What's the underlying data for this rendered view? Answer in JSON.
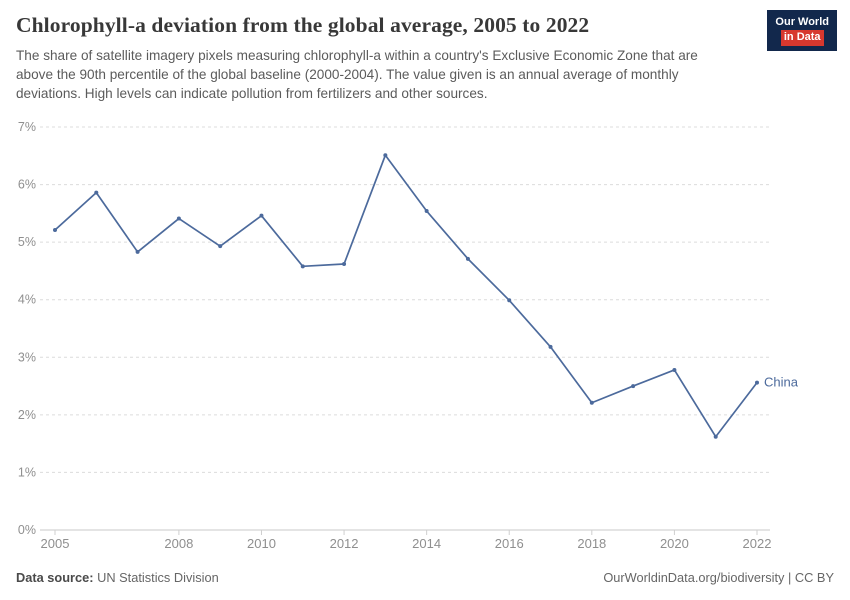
{
  "header": {
    "title": "Chlorophyll-a deviation from the global average, 2005 to 2022",
    "subtitle": "The share of satellite imagery pixels measuring chlorophyll-a within a country's Exclusive Economic Zone that are above the 90th percentile of the global baseline (2000-2004). The value given is an annual average of monthly deviations. High levels can indicate pollution from fertilizers and other sources.",
    "logo": {
      "line1": "Our World",
      "line2": "in Data"
    }
  },
  "chart_data": {
    "type": "line",
    "title": "Chlorophyll-a deviation from the global average, 2005 to 2022",
    "x": [
      2005,
      2006,
      2007,
      2008,
      2009,
      2010,
      2011,
      2012,
      2013,
      2014,
      2015,
      2016,
      2017,
      2018,
      2019,
      2020,
      2021,
      2022
    ],
    "series": [
      {
        "name": "China",
        "color": "#4c6a9c",
        "values": [
          5.21,
          5.86,
          4.83,
          5.41,
          4.93,
          5.46,
          4.58,
          4.62,
          6.51,
          5.54,
          4.71,
          3.99,
          3.18,
          2.21,
          2.5,
          2.78,
          1.62,
          2.56
        ]
      }
    ],
    "xlabel": "",
    "ylabel": "",
    "xlim": [
      2005,
      2022
    ],
    "ylim": [
      0,
      7
    ],
    "x_ticks": [
      2005,
      2008,
      2010,
      2012,
      2014,
      2016,
      2018,
      2020,
      2022
    ],
    "y_ticks": [
      0,
      1,
      2,
      3,
      4,
      5,
      6,
      7
    ],
    "y_tick_format": "{}%",
    "grid": "horizontal-dashed",
    "legend": "end-of-line-label"
  },
  "footer": {
    "source_label": "Data source:",
    "source_text": "UN Statistics Division",
    "credit": "OurWorldinData.org/biodiversity | CC BY"
  },
  "colors": {
    "series_china": "#4c6a9c",
    "logo_bg": "#12284c",
    "logo_accent": "#d7382e",
    "grid": "#dcdcdc",
    "axis_zero_line": "#c9c9c9",
    "axis_text": "#8f8f8f",
    "title_text": "#383838",
    "subtitle_text": "#5b5b5b"
  }
}
